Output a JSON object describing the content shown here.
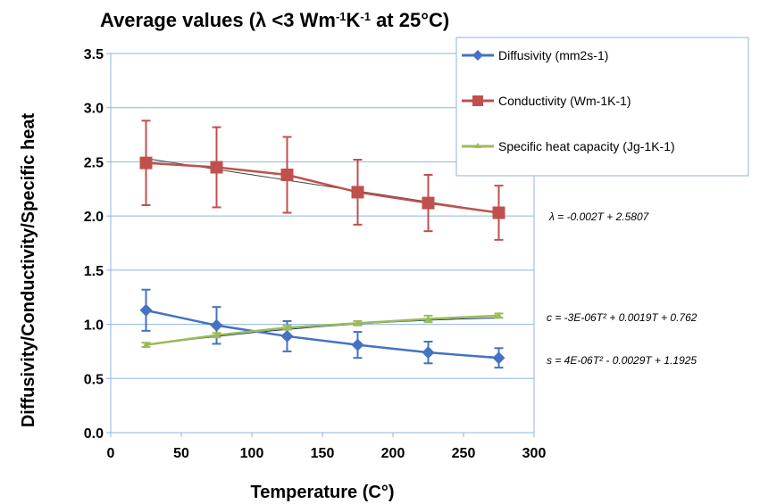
{
  "chart_data": {
    "type": "line",
    "title_main": "Average values (λ <3 Wm",
    "title_sup1": "-1",
    "title_mid": "K",
    "title_sup2": "-1",
    "title_end": " at 25°C)",
    "xlabel": "Temperature (C°)",
    "ylabel": "Diffusivity/Conductivity/Specific heat",
    "xlim": [
      0,
      300
    ],
    "ylim": [
      0,
      3.5
    ],
    "x_ticks": [
      0,
      50,
      100,
      150,
      200,
      250,
      300
    ],
    "x_tick_labels": [
      "0",
      "50",
      "100",
      "150",
      "200",
      "250",
      "300"
    ],
    "y_ticks": [
      0,
      0.5,
      1,
      1.5,
      2,
      2.5,
      3,
      3.5
    ],
    "y_tick_labels": [
      "0.0",
      "0.5",
      "1.0",
      "1.5",
      "2.0",
      "2.5",
      "3.0",
      "3.5"
    ],
    "grid": "horizontal",
    "x": [
      25,
      75,
      125,
      175,
      225,
      275
    ],
    "series": [
      {
        "name": "Diffusivity (mm2s-1)",
        "color": "#4472C4",
        "marker": "diamond",
        "values": [
          1.13,
          0.99,
          0.89,
          0.81,
          0.74,
          0.69
        ],
        "errors": [
          0.19,
          0.17,
          0.14,
          0.12,
          0.1,
          0.09
        ]
      },
      {
        "name": "Conductivity (Wm-1K-1)",
        "color": "#C0504D",
        "marker": "square",
        "values": [
          2.49,
          2.45,
          2.38,
          2.22,
          2.12,
          2.03
        ],
        "errors": [
          0.39,
          0.37,
          0.35,
          0.3,
          0.26,
          0.25
        ]
      },
      {
        "name": "Specific heat capacity (Jg-1K-1)",
        "color": "#9BBB59",
        "marker": "triangle",
        "values": [
          0.81,
          0.9,
          0.97,
          1.01,
          1.05,
          1.08
        ],
        "errors": [
          0.02,
          0.02,
          0.02,
          0.02,
          0.03,
          0.02
        ]
      }
    ],
    "trendlines": [
      {
        "label": "λ = -0.002T + 2.5807",
        "type": "linear",
        "coef": [
          2.5807,
          -0.002
        ]
      },
      {
        "label": "c = -3E-06T² + 0.0019T + 0.762",
        "type": "poly2",
        "coef": [
          0.762,
          0.0019,
          -3e-06
        ]
      },
      {
        "label": "s = 4E-06T² - 0.0029T + 1.1925",
        "type": "poly2",
        "coef": [
          1.1925,
          -0.0029,
          4e-06
        ]
      }
    ],
    "legend_position": "top-right"
  }
}
